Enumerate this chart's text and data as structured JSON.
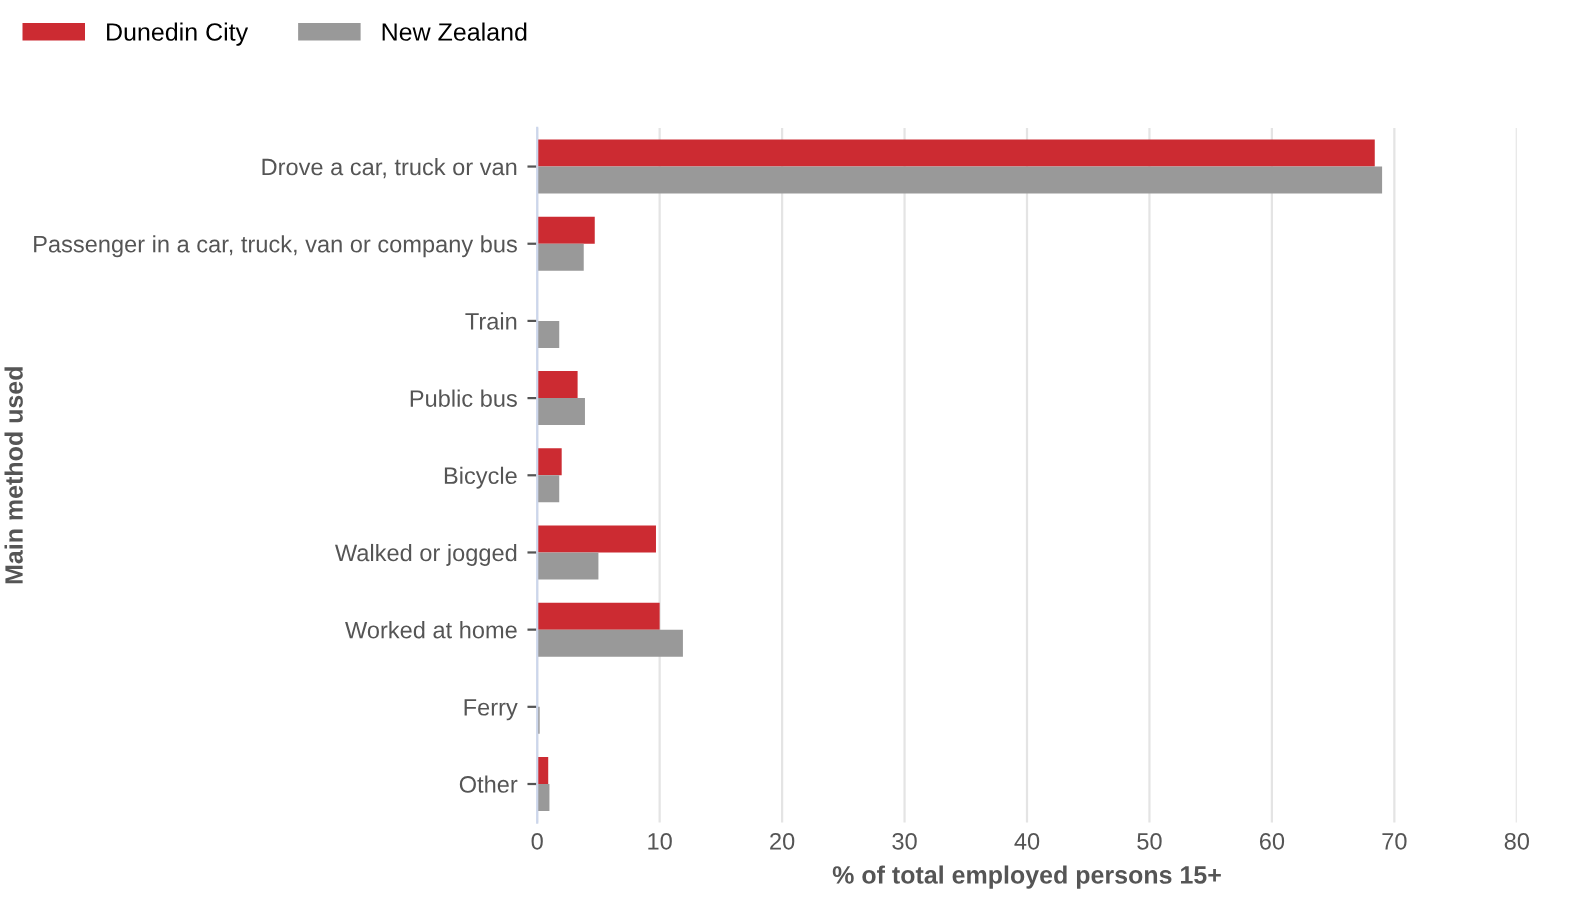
{
  "chart_data": {
    "type": "bar",
    "orientation": "horizontal",
    "xlabel": "% of total employed persons 15+",
    "ylabel": "Main method used",
    "categories": [
      "Drove a car, truck or van",
      "Passenger in a car, truck, van or company bus",
      "Train",
      "Public bus",
      "Bicycle",
      "Walked or jogged",
      "Worked at home",
      "Ferry",
      "Other"
    ],
    "series": [
      {
        "name": "Dunedin City",
        "color": "#cc2b32",
        "values": [
          68.4,
          4.7,
          0,
          3.3,
          2.0,
          9.7,
          10.0,
          0,
          0.9
        ]
      },
      {
        "name": "New Zealand",
        "color": "#999999",
        "values": [
          69.0,
          3.8,
          1.8,
          3.9,
          1.8,
          5.0,
          11.9,
          0.2,
          1.0
        ]
      }
    ],
    "xlim": [
      0,
      80
    ],
    "xticks": [
      0,
      10,
      20,
      30,
      40,
      50,
      60,
      70,
      80
    ],
    "grid": "x",
    "legend": "top left"
  }
}
